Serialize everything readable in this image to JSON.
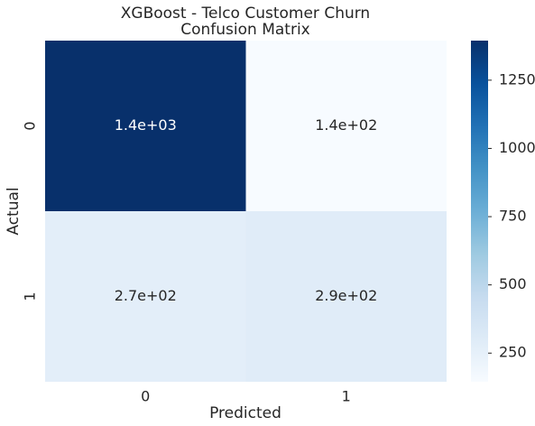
{
  "chart_data": {
    "type": "heatmap",
    "title": "XGBoost - Telco Customer Churn",
    "subtitle": "Confusion Matrix",
    "x_label": "Predicted",
    "y_label": "Actual",
    "x_categories": [
      "0",
      "1"
    ],
    "y_categories": [
      "0",
      "1"
    ],
    "values": [
      [
        1395,
        145
      ],
      [
        270,
        290
      ]
    ],
    "value_labels": [
      [
        "1.4e+03",
        "1.4e+02"
      ],
      [
        "2.7e+02",
        "2.9e+02"
      ]
    ],
    "clim": [
      145,
      1395
    ],
    "cticks": [
      250,
      500,
      750,
      1000,
      1250
    ],
    "cmap_colors": [
      "#f7fbff",
      "#deebf7",
      "#c6dbef",
      "#9ecae1",
      "#6baed6",
      "#4292c6",
      "#2171b5",
      "#08519c",
      "#08306b"
    ]
  }
}
